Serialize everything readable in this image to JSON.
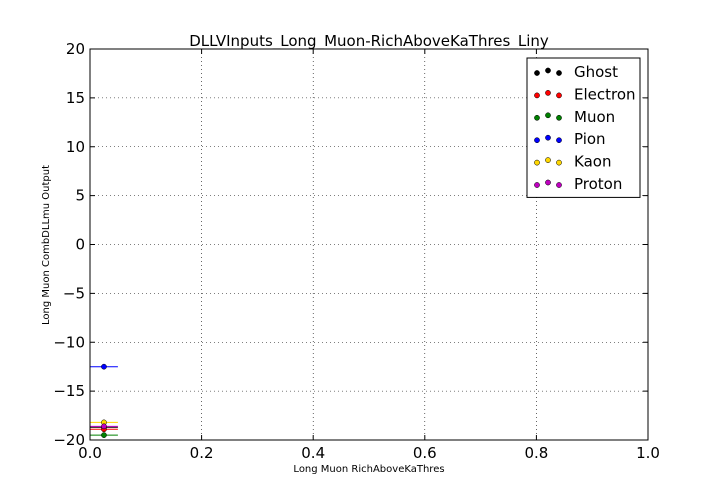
{
  "chart_data": {
    "type": "scatter",
    "title": "DLLVInputs_Long_Muon-RichAboveKaThres_Liny",
    "xlabel": "Long Muon RichAboveKaThres",
    "ylabel": "Long Muon CombDLLmu Output",
    "xlim": [
      0.0,
      1.0
    ],
    "ylim": [
      -20,
      20
    ],
    "x_ticks": [
      0.0,
      0.2,
      0.4,
      0.6,
      0.8,
      1.0
    ],
    "x_tick_labels": [
      "0.0",
      "0.2",
      "0.4",
      "0.6",
      "0.8",
      "1.0"
    ],
    "y_ticks": [
      20,
      15,
      10,
      5,
      0,
      -5,
      -10,
      -15,
      -20
    ],
    "y_tick_labels": [
      "20",
      "15",
      "10",
      "5",
      "0",
      "−5",
      "−10",
      "−15",
      "−20"
    ],
    "grid": true,
    "legend_position": "top-right",
    "series": [
      {
        "name": "Ghost",
        "color": "#000000",
        "x": 0.025,
        "xerr": 0.025,
        "y": -18.7
      },
      {
        "name": "Electron",
        "color": "#ff0000",
        "x": 0.025,
        "xerr": 0.025,
        "y": -18.9
      },
      {
        "name": "Muon",
        "color": "#008000",
        "x": 0.025,
        "xerr": 0.025,
        "y": -19.5
      },
      {
        "name": "Pion",
        "color": "#0000ff",
        "x": 0.025,
        "xerr": 0.025,
        "y": -12.5
      },
      {
        "name": "Kaon",
        "color": "#ffd700",
        "x": 0.025,
        "xerr": 0.025,
        "y": -18.2
      },
      {
        "name": "Proton",
        "color": "#bf00bf",
        "x": 0.025,
        "xerr": 0.025,
        "y": -18.6
      }
    ]
  }
}
